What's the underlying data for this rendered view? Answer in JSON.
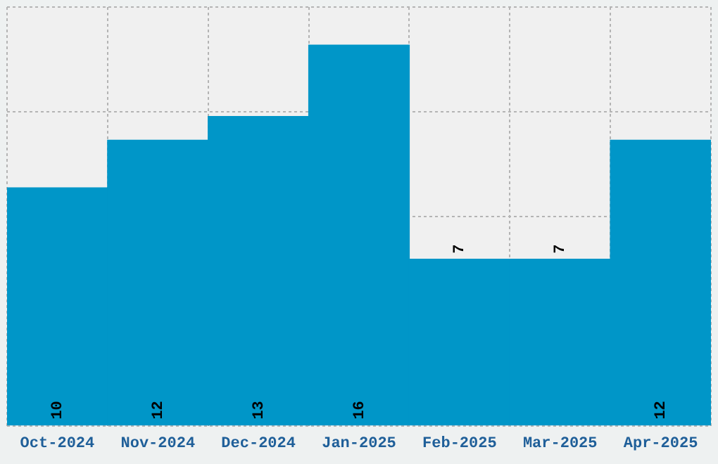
{
  "chart_data": {
    "type": "bar",
    "categories": [
      "Oct-2024",
      "Nov-2024",
      "Dec-2024",
      "Jan-2025",
      "Feb-2025",
      "Mar-2025",
      "Apr-2025"
    ],
    "values": [
      10,
      12,
      13,
      16,
      7,
      7,
      12
    ],
    "color": "#0096c8",
    "data_labels": true,
    "grid": true,
    "legend": false,
    "tick_labels": "x",
    "ylim": [
      0,
      17.6
    ]
  }
}
